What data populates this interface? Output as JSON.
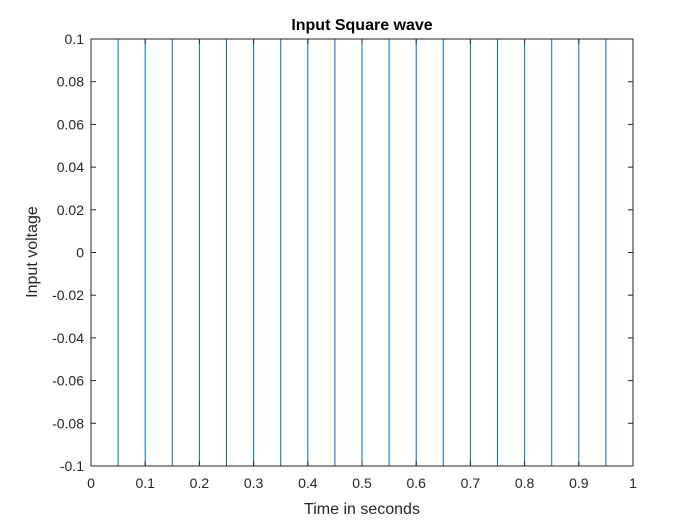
{
  "chart_data": {
    "type": "line",
    "title": "Input Square wave",
    "xlabel": "Time in seconds",
    "ylabel": "Input voltage",
    "xlim": [
      0,
      1
    ],
    "ylim": [
      -0.1,
      0.1
    ],
    "grid": false,
    "line_color": "#0072BD",
    "x_ticks": [
      "0",
      "0.1",
      "0.2",
      "0.3",
      "0.4",
      "0.5",
      "0.6",
      "0.7",
      "0.8",
      "0.9",
      "1"
    ],
    "y_ticks": [
      "-0.1",
      "-0.08",
      "-0.06",
      "-0.04",
      "-0.02",
      "0",
      "0.02",
      "0.04",
      "0.06",
      "0.08",
      "0.1"
    ],
    "series": [
      {
        "x": [
          0,
          0.05,
          0.05,
          0.1,
          0.1,
          0.15,
          0.15,
          0.2,
          0.2,
          0.25,
          0.25,
          0.3,
          0.3,
          0.35,
          0.35,
          0.4,
          0.4,
          0.45,
          0.45,
          0.5,
          0.5,
          0.55,
          0.55,
          0.6,
          0.6,
          0.65,
          0.65,
          0.7,
          0.7,
          0.75,
          0.75,
          0.8,
          0.8,
          0.85,
          0.85,
          0.9,
          0.9,
          0.95,
          0.95,
          1.0
        ],
        "y": [
          0.1,
          0.1,
          -0.1,
          -0.1,
          0.1,
          0.1,
          -0.1,
          -0.1,
          0.1,
          0.1,
          -0.1,
          -0.1,
          0.1,
          0.1,
          -0.1,
          -0.1,
          0.1,
          0.1,
          -0.1,
          -0.1,
          0.1,
          0.1,
          -0.1,
          -0.1,
          0.1,
          0.1,
          -0.1,
          -0.1,
          0.1,
          0.1,
          -0.1,
          -0.1,
          0.1,
          0.1,
          -0.1,
          -0.1,
          0.1,
          0.1,
          -0.1,
          -0.1
        ]
      }
    ]
  }
}
